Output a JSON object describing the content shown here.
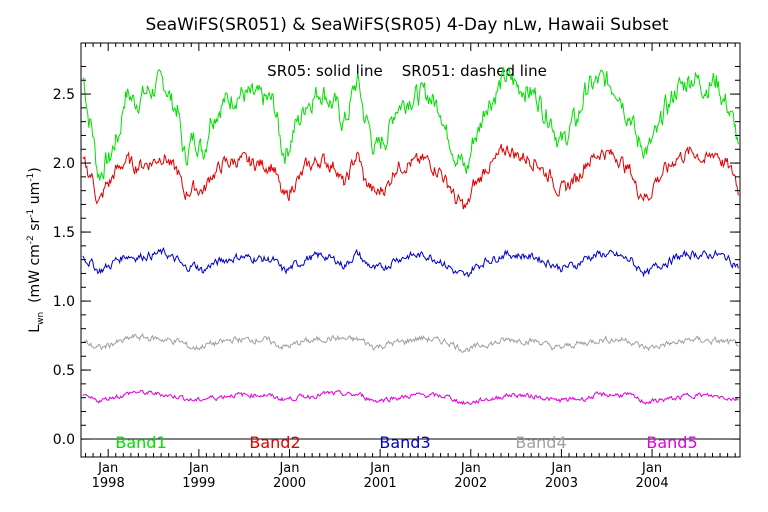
{
  "chart_data": {
    "type": "line",
    "title": "SeaWiFS(SR051) & SeaWiFS(SR05) 4-Day nLw, Hawaii Subset",
    "subtitle": "SR05: solid line    SR051: dashed line",
    "ylabel_main": "L",
    "ylabel_sub": "wn",
    "ylabel_units": "(mW cm",
    "ylabel_exp1": "-2",
    "ylabel_mid": " sr",
    "ylabel_exp2": "-1",
    "ylabel_mid2": " um",
    "ylabel_exp3": "-1",
    "ylabel_end": ")",
    "ylim": [
      -0.13,
      2.87
    ],
    "xlim": [
      1997.7,
      2004.97
    ],
    "yticks": [
      0.0,
      0.5,
      1.0,
      1.5,
      2.0,
      2.5
    ],
    "ytick_labels": [
      "0.0",
      "0.5",
      "1.0",
      "1.5",
      "2.0",
      "2.5"
    ],
    "xticks": [
      1998,
      1999,
      2000,
      2001,
      2002,
      2003,
      2004
    ],
    "xtick_month": [
      "Jan",
      "Jan",
      "Jan",
      "Jan",
      "Jan",
      "Jan",
      "Jan"
    ],
    "xtick_year": [
      "1998",
      "1999",
      "2000",
      "2001",
      "2002",
      "2003",
      "2004"
    ],
    "grid": false,
    "legend_position": "bottom",
    "zero_line": true,
    "series": [
      {
        "name": "Band1",
        "color": "#00e000",
        "x": [
          1997.72,
          1997.8,
          1997.9,
          1998.0,
          1998.1,
          1998.2,
          1998.3,
          1998.45,
          1998.6,
          1998.75,
          1998.85,
          1998.95,
          1999.05,
          1999.15,
          1999.3,
          1999.45,
          1999.6,
          1999.8,
          1999.95,
          2000.1,
          2000.2,
          2000.35,
          2000.5,
          2000.6,
          2000.75,
          2000.85,
          2000.95,
          2001.05,
          2001.2,
          2001.35,
          2001.5,
          2001.65,
          2001.75,
          2001.85,
          2001.95,
          2002.05,
          2002.2,
          2002.4,
          2002.55,
          2002.7,
          2002.85,
          2003.0,
          2003.15,
          2003.3,
          2003.45,
          2003.6,
          2003.75,
          2003.85,
          2003.95,
          2004.05,
          2004.15,
          2004.3,
          2004.45,
          2004.6,
          2004.7,
          2004.8,
          2004.9,
          2004.96
        ],
        "y": [
          2.62,
          2.3,
          1.92,
          2.02,
          2.18,
          2.5,
          2.45,
          2.52,
          2.58,
          2.4,
          2.05,
          2.18,
          2.1,
          2.35,
          2.45,
          2.5,
          2.48,
          2.45,
          2.08,
          2.3,
          2.45,
          2.52,
          2.42,
          2.3,
          2.58,
          2.3,
          2.1,
          2.18,
          2.42,
          2.48,
          2.5,
          2.42,
          2.2,
          2.05,
          1.95,
          2.2,
          2.45,
          2.62,
          2.55,
          2.5,
          2.35,
          2.15,
          2.3,
          2.55,
          2.6,
          2.55,
          2.35,
          2.15,
          2.1,
          2.2,
          2.4,
          2.55,
          2.62,
          2.55,
          2.6,
          2.45,
          2.3,
          2.08
        ]
      },
      {
        "name": "Band2",
        "color": "#e00000",
        "x": [
          1997.72,
          1997.8,
          1997.9,
          1998.0,
          1998.1,
          1998.2,
          1998.3,
          1998.45,
          1998.6,
          1998.75,
          1998.85,
          1998.95,
          1999.05,
          1999.15,
          1999.3,
          1999.45,
          1999.6,
          1999.8,
          1999.95,
          2000.1,
          2000.2,
          2000.35,
          2000.5,
          2000.6,
          2000.75,
          2000.85,
          2000.95,
          2001.05,
          2001.2,
          2001.35,
          2001.5,
          2001.65,
          2001.75,
          2001.85,
          2001.95,
          2002.05,
          2002.2,
          2002.4,
          2002.55,
          2002.7,
          2002.85,
          2003.0,
          2003.15,
          2003.3,
          2003.45,
          2003.6,
          2003.75,
          2003.85,
          2003.95,
          2004.05,
          2004.15,
          2004.3,
          2004.45,
          2004.6,
          2004.7,
          2004.8,
          2004.9,
          2004.96
        ],
        "y": [
          2.0,
          1.92,
          1.72,
          1.85,
          1.95,
          2.02,
          1.98,
          2.0,
          2.05,
          1.95,
          1.78,
          1.82,
          1.8,
          1.92,
          2.0,
          2.02,
          2.0,
          1.98,
          1.75,
          1.88,
          1.98,
          2.02,
          1.98,
          1.85,
          2.05,
          1.85,
          1.78,
          1.82,
          1.98,
          2.0,
          2.02,
          1.95,
          1.85,
          1.72,
          1.68,
          1.85,
          1.98,
          2.1,
          2.05,
          2.02,
          1.92,
          1.8,
          1.88,
          2.02,
          2.08,
          2.05,
          1.95,
          1.8,
          1.75,
          1.88,
          1.95,
          2.05,
          2.08,
          2.02,
          2.08,
          2.0,
          1.92,
          1.8
        ]
      },
      {
        "name": "Band3",
        "color": "#0000c8",
        "x": [
          1997.72,
          1997.8,
          1997.9,
          1998.0,
          1998.1,
          1998.2,
          1998.3,
          1998.45,
          1998.6,
          1998.75,
          1998.85,
          1998.95,
          1999.05,
          1999.15,
          1999.3,
          1999.45,
          1999.6,
          1999.8,
          1999.95,
          2000.1,
          2000.2,
          2000.35,
          2000.5,
          2000.6,
          2000.75,
          2000.85,
          2000.95,
          2001.05,
          2001.2,
          2001.35,
          2001.5,
          2001.65,
          2001.75,
          2001.85,
          2001.95,
          2002.05,
          2002.2,
          2002.4,
          2002.55,
          2002.7,
          2002.85,
          2003.0,
          2003.15,
          2003.3,
          2003.45,
          2003.6,
          2003.75,
          2003.85,
          2003.95,
          2004.05,
          2004.15,
          2004.3,
          2004.45,
          2004.6,
          2004.7,
          2004.8,
          2004.9,
          2004.96
        ],
        "y": [
          1.32,
          1.28,
          1.22,
          1.25,
          1.3,
          1.33,
          1.32,
          1.33,
          1.35,
          1.3,
          1.24,
          1.26,
          1.22,
          1.27,
          1.3,
          1.32,
          1.31,
          1.3,
          1.22,
          1.27,
          1.31,
          1.33,
          1.3,
          1.26,
          1.34,
          1.27,
          1.23,
          1.25,
          1.31,
          1.33,
          1.33,
          1.3,
          1.25,
          1.2,
          1.18,
          1.25,
          1.3,
          1.34,
          1.33,
          1.32,
          1.28,
          1.24,
          1.26,
          1.32,
          1.34,
          1.33,
          1.3,
          1.24,
          1.2,
          1.25,
          1.28,
          1.32,
          1.34,
          1.33,
          1.34,
          1.32,
          1.28,
          1.24
        ]
      },
      {
        "name": "Band4",
        "color": "#a0a0a0",
        "x": [
          1997.72,
          1997.9,
          1998.1,
          1998.3,
          1998.5,
          1998.75,
          1998.95,
          1999.15,
          1999.4,
          1999.7,
          1999.95,
          2000.2,
          2000.45,
          2000.75,
          2000.95,
          2001.2,
          2001.45,
          2001.7,
          2001.95,
          2002.2,
          2002.45,
          2002.7,
          2002.95,
          2003.2,
          2003.45,
          2003.7,
          2003.95,
          2004.2,
          2004.45,
          2004.7,
          2004.96
        ],
        "y": [
          0.7,
          0.66,
          0.7,
          0.74,
          0.73,
          0.71,
          0.66,
          0.69,
          0.72,
          0.72,
          0.67,
          0.71,
          0.73,
          0.72,
          0.67,
          0.7,
          0.73,
          0.71,
          0.65,
          0.69,
          0.72,
          0.71,
          0.66,
          0.69,
          0.72,
          0.72,
          0.66,
          0.69,
          0.72,
          0.71,
          0.69
        ]
      },
      {
        "name": "Band5",
        "color": "#e000e0",
        "x": [
          1997.72,
          1997.9,
          1998.1,
          1998.3,
          1998.5,
          1998.75,
          1998.95,
          1999.15,
          1999.4,
          1999.7,
          1999.95,
          2000.2,
          2000.45,
          2000.75,
          2000.95,
          2001.2,
          2001.45,
          2001.7,
          2001.95,
          2002.2,
          2002.45,
          2002.7,
          2002.95,
          2003.2,
          2003.45,
          2003.7,
          2003.95,
          2004.2,
          2004.45,
          2004.7,
          2004.96
        ],
        "y": [
          0.3,
          0.28,
          0.31,
          0.34,
          0.33,
          0.31,
          0.28,
          0.3,
          0.32,
          0.32,
          0.29,
          0.31,
          0.33,
          0.32,
          0.28,
          0.3,
          0.32,
          0.31,
          0.26,
          0.29,
          0.32,
          0.31,
          0.28,
          0.29,
          0.32,
          0.32,
          0.27,
          0.29,
          0.32,
          0.31,
          0.29
        ]
      }
    ]
  }
}
